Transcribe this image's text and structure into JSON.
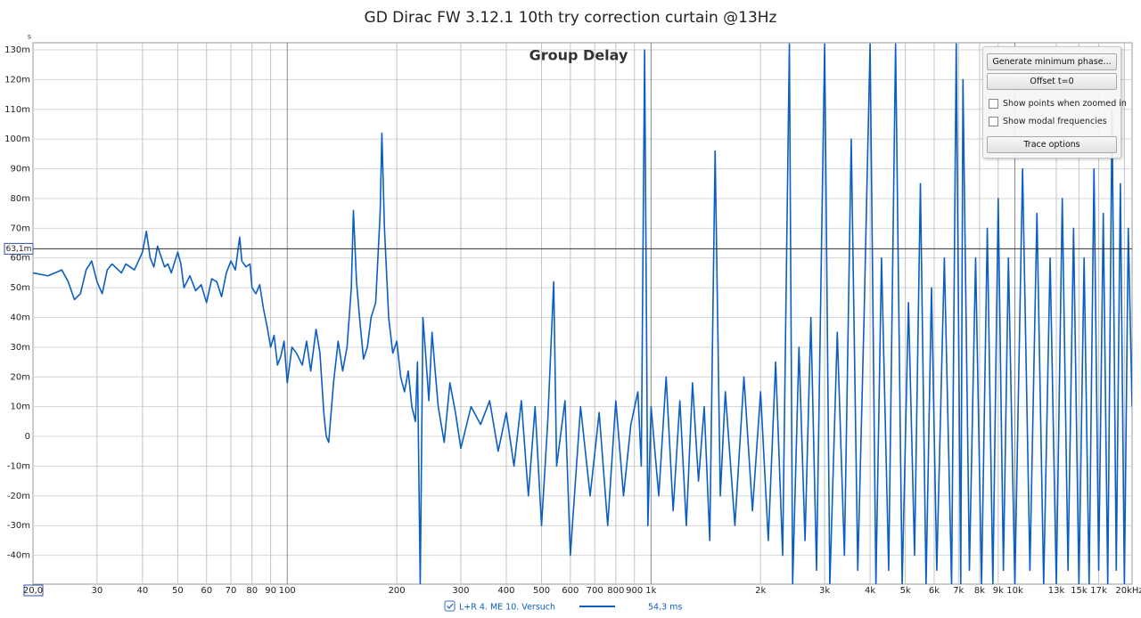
{
  "chart_data": {
    "type": "line",
    "title": "GD Dirac FW 3.12.1 10th try correction curtain @13Hz",
    "subtitle": "Group Delay",
    "y_unit": "s",
    "log_x": true,
    "grid": true,
    "xlim": [
      20,
      21000
    ],
    "ylim": [
      -0.0497,
      0.1324
    ],
    "xticks": [
      {
        "value": 20,
        "label": "20,0"
      },
      30,
      40,
      50,
      60,
      70,
      80,
      90,
      100,
      200,
      300,
      400,
      500,
      600,
      700,
      800,
      900,
      {
        "value": 1000,
        "label": "1k"
      },
      {
        "value": 2000,
        "label": "2k"
      },
      {
        "value": 3000,
        "label": "3k"
      },
      {
        "value": 4000,
        "label": "4k"
      },
      {
        "value": 5000,
        "label": "5k"
      },
      {
        "value": 6000,
        "label": "6k"
      },
      {
        "value": 7000,
        "label": "7k"
      },
      {
        "value": 8000,
        "label": "8k"
      },
      {
        "value": 9000,
        "label": "9k"
      },
      {
        "value": 10000,
        "label": "10k"
      },
      {
        "value": 13000,
        "label": "13k"
      },
      {
        "value": 15000,
        "label": "15k"
      },
      {
        "value": 17000,
        "label": "17k"
      },
      {
        "value": 20000,
        "label": "20kHz"
      }
    ],
    "yticks": [
      {
        "value": -0.04,
        "label": "-40m"
      },
      {
        "value": -0.03,
        "label": "-30m"
      },
      {
        "value": -0.02,
        "label": "-20m"
      },
      {
        "value": -0.01,
        "label": "-10m"
      },
      0,
      {
        "value": 0.01,
        "label": "10m"
      },
      {
        "value": 0.02,
        "label": "20m"
      },
      {
        "value": 0.03,
        "label": "30m"
      },
      {
        "value": 0.04,
        "label": "40m"
      },
      {
        "value": 0.05,
        "label": "50m"
      },
      {
        "value": 0.06,
        "label": "60m"
      },
      {
        "value": 0.07,
        "label": "70m"
      },
      {
        "value": 0.08,
        "label": "80m"
      },
      {
        "value": 0.09,
        "label": "90m"
      },
      {
        "value": 0.1,
        "label": "100m"
      },
      {
        "value": 0.11,
        "label": "110m"
      },
      {
        "value": 0.12,
        "label": "120m"
      },
      {
        "value": 0.13,
        "label": "130m"
      }
    ],
    "cursor": {
      "value": 0.0631,
      "label": "63,1m"
    },
    "x": [
      20,
      22,
      24,
      25,
      26,
      27,
      28,
      29,
      30,
      31,
      32,
      33,
      35,
      36,
      38,
      39,
      40,
      41,
      42,
      43,
      44,
      46,
      47,
      48,
      50,
      51,
      52,
      54,
      56,
      58,
      60,
      62,
      64,
      66,
      68,
      70,
      72,
      74,
      75,
      77,
      79,
      80,
      82,
      84,
      86,
      88,
      90,
      92,
      94,
      96,
      98,
      100,
      103,
      106,
      110,
      113,
      116,
      120,
      123,
      126,
      128,
      130,
      134,
      138,
      142,
      146,
      150,
      152,
      155,
      158,
      162,
      166,
      170,
      175,
      180,
      182,
      185,
      190,
      195,
      200,
      205,
      210,
      215,
      220,
      225,
      228,
      232,
      236,
      240,
      245,
      250,
      255,
      260,
      270,
      280,
      290,
      300,
      320,
      340,
      360,
      380,
      400,
      420,
      440,
      460,
      480,
      500,
      520,
      540,
      550,
      580,
      600,
      640,
      680,
      720,
      760,
      800,
      840,
      880,
      920,
      940,
      960,
      980,
      1000,
      1050,
      1100,
      1150,
      1200,
      1250,
      1300,
      1350,
      1400,
      1450,
      1500,
      1550,
      1600,
      1700,
      1800,
      1900,
      2000,
      2100,
      2200,
      2300,
      2400,
      2450,
      2550,
      2650,
      2750,
      2850,
      3000,
      3100,
      3250,
      3400,
      3550,
      3700,
      3850,
      4000,
      4150,
      4300,
      4500,
      4700,
      4900,
      5100,
      5300,
      5500,
      5700,
      5900,
      6100,
      6400,
      6700,
      6900,
      7100,
      7200,
      7500,
      7800,
      8100,
      8400,
      8700,
      9000,
      9300,
      9600,
      10000,
      10500,
      11000,
      11500,
      12000,
      12500,
      13000,
      13500,
      14000,
      14500,
      15000,
      15500,
      16000,
      16500,
      17000,
      17500,
      18000,
      18500,
      19000,
      19500,
      20000,
      20500,
      21000
    ],
    "series": [
      {
        "name": "L+R 4. ME 10. Versuch",
        "color": "#0b5ec2",
        "values": [
          0.055,
          0.054,
          0.056,
          0.052,
          0.046,
          0.048,
          0.056,
          0.059,
          0.052,
          0.048,
          0.056,
          0.058,
          0.055,
          0.058,
          0.056,
          0.059,
          0.062,
          0.069,
          0.06,
          0.057,
          0.064,
          0.057,
          0.058,
          0.055,
          0.062,
          0.058,
          0.05,
          0.054,
          0.049,
          0.051,
          0.045,
          0.053,
          0.052,
          0.047,
          0.055,
          0.059,
          0.056,
          0.067,
          0.059,
          0.057,
          0.058,
          0.05,
          0.048,
          0.051,
          0.043,
          0.037,
          0.03,
          0.034,
          0.024,
          0.027,
          0.032,
          0.018,
          0.03,
          0.028,
          0.024,
          0.032,
          0.022,
          0.036,
          0.028,
          0.008,
          0.0,
          -0.002,
          0.018,
          0.032,
          0.022,
          0.03,
          0.05,
          0.076,
          0.052,
          0.04,
          0.026,
          0.03,
          0.04,
          0.045,
          0.075,
          0.102,
          0.07,
          0.04,
          0.028,
          0.032,
          0.02,
          0.015,
          0.022,
          0.01,
          0.005,
          0.025,
          -0.05,
          0.04,
          0.028,
          0.012,
          0.035,
          0.022,
          0.01,
          -0.002,
          0.018,
          0.008,
          -0.004,
          0.01,
          0.004,
          0.012,
          -0.005,
          0.008,
          -0.01,
          0.012,
          -0.02,
          0.01,
          -0.03,
          0.005,
          0.052,
          -0.01,
          0.012,
          -0.04,
          0.01,
          -0.02,
          0.008,
          -0.03,
          0.012,
          -0.02,
          0.004,
          0.015,
          -0.01,
          0.13,
          -0.03,
          0.01,
          -0.02,
          0.02,
          -0.025,
          0.012,
          -0.03,
          0.018,
          -0.015,
          0.01,
          -0.035,
          0.096,
          -0.02,
          0.015,
          -0.03,
          0.02,
          -0.025,
          0.015,
          -0.035,
          0.025,
          -0.04,
          0.132,
          -0.05,
          0.03,
          -0.035,
          0.04,
          -0.045,
          0.132,
          -0.05,
          0.035,
          -0.04,
          0.1,
          -0.045,
          0.04,
          0.132,
          -0.05,
          0.06,
          -0.045,
          0.132,
          -0.05,
          0.045,
          -0.04,
          0.085,
          -0.05,
          0.05,
          -0.045,
          0.06,
          -0.05,
          0.132,
          -0.05,
          0.12,
          -0.045,
          0.06,
          -0.05,
          0.07,
          -0.05,
          0.08,
          -0.045,
          0.06,
          -0.05,
          0.09,
          -0.045,
          0.075,
          -0.05,
          0.06,
          -0.05,
          0.08,
          -0.045,
          0.07,
          -0.05,
          0.06,
          -0.05,
          0.09,
          -0.045,
          0.075,
          -0.05,
          0.11,
          -0.045,
          0.085,
          -0.05,
          0.07,
          0.01
        ]
      }
    ],
    "legend_value": "54,3 ms"
  },
  "controls": {
    "buttons": [
      "Generate minimum phase...",
      "Offset t=0",
      "Trace options"
    ],
    "checkboxes": [
      "Show points when zoomed in",
      "Show modal frequencies"
    ]
  }
}
